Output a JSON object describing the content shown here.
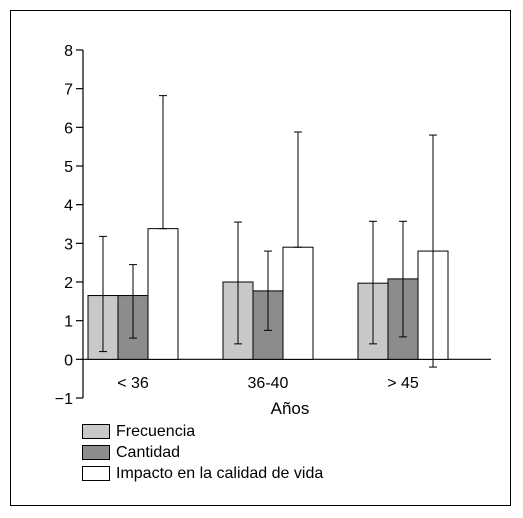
{
  "chart_data": {
    "type": "bar",
    "categories": [
      "< 36",
      "36-40",
      "> 45"
    ],
    "xlabel": "Años",
    "ylabel": "",
    "ylim": [
      -1,
      8
    ],
    "yticks": [
      -1,
      0,
      1,
      2,
      3,
      4,
      5,
      6,
      7,
      8
    ],
    "ytick_labels": [
      "−1",
      "0",
      "1",
      "2",
      "3",
      "4",
      "5",
      "6",
      "7",
      "8"
    ],
    "grid": false,
    "legend_position": "bottom-left",
    "series": [
      {
        "name": "Frecuencia",
        "color": "#c8c8c8",
        "values": [
          1.65,
          2.0,
          1.97
        ],
        "err_low": [
          0.2,
          0.4,
          0.4
        ],
        "err_high": [
          3.18,
          3.55,
          3.57
        ]
      },
      {
        "name": "Cantidad",
        "color": "#8c8c8c",
        "values": [
          1.65,
          1.77,
          2.08
        ],
        "err_low": [
          0.55,
          0.75,
          0.58
        ],
        "err_high": [
          2.45,
          2.8,
          3.57
        ]
      },
      {
        "name": "Impacto en la calidad de vida",
        "color": "#ffffff",
        "values": [
          3.38,
          2.9,
          2.8
        ],
        "err_low": [
          3.38,
          2.9,
          -0.2
        ],
        "err_high": [
          6.82,
          5.88,
          5.8
        ]
      }
    ]
  }
}
